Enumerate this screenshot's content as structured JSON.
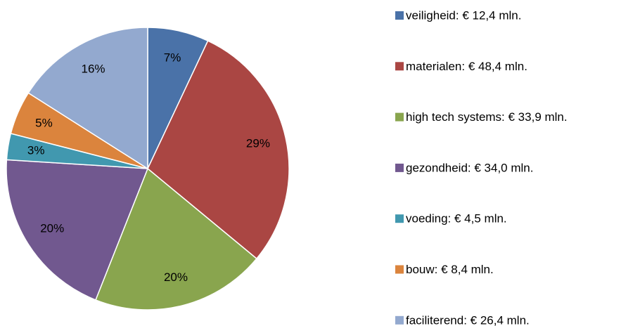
{
  "chart_data": {
    "type": "pie",
    "categories": [
      "veiligheid: € 12,4 mln.",
      "materialen: € 48,4 mln.",
      "high tech systems: € 33,9 mln.",
      "gezondheid: € 34,0 mln.",
      "voeding: € 4,5 mln.",
      "bouw: € 8,4 mln.",
      "faciliterend: € 26,4 mln."
    ],
    "values": [
      7,
      29,
      20,
      20,
      3,
      5,
      16
    ],
    "value_labels": [
      "7%",
      "29%",
      "20%",
      "20%",
      "3%",
      "5%",
      "16%"
    ],
    "colors": [
      "#4a72a8",
      "#aa4643",
      "#89a54e",
      "#71588f",
      "#4198af",
      "#db843d",
      "#93a9cf"
    ],
    "legend": "right"
  }
}
